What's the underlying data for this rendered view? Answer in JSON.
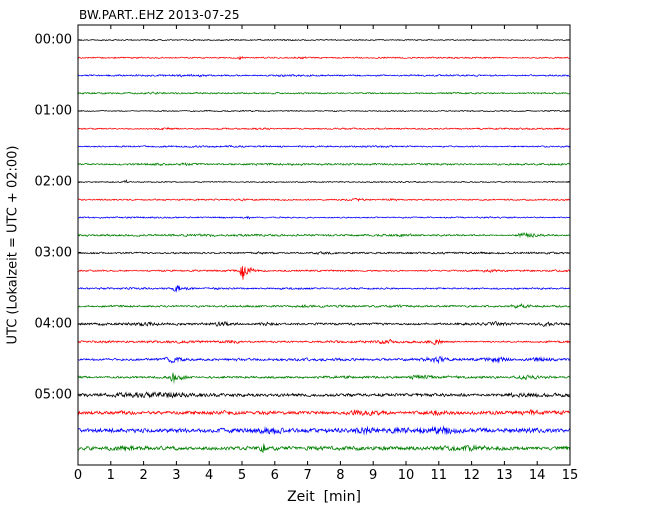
{
  "title": "BW.PART..EHZ 2013-07-25",
  "xlabel": "Zeit  [min]",
  "ylabel": "UTC (Lokalzeit = UTC + 02:00)",
  "chart_data": {
    "type": "line",
    "subtype": "seismogram-dayplot",
    "station": "BW.PART..EHZ",
    "date": "2013-07-25",
    "title": "BW.PART..EHZ 2013-07-25",
    "xlabel": "Zeit  [min]",
    "ylabel": "UTC (Lokalzeit = UTC + 02:00)",
    "xlim": [
      0,
      15
    ],
    "minutes_per_line": 15,
    "grid": false,
    "x_ticks": [
      "0",
      "1",
      "2",
      "3",
      "4",
      "5",
      "6",
      "7",
      "8",
      "9",
      "10",
      "11",
      "12",
      "13",
      "14",
      "15"
    ],
    "y_ticks": [
      "00:00",
      "01:00",
      "02:00",
      "03:00",
      "04:00",
      "05:00"
    ],
    "color_cycle": [
      "#000000",
      "#ff0000",
      "#0000ff",
      "#008000"
    ],
    "traces": [
      {
        "start": "00:00",
        "color": "#000000",
        "amp": 0.7,
        "events": []
      },
      {
        "start": "00:15",
        "color": "#ff0000",
        "amp": 0.9,
        "events": [
          {
            "pos": 4.95,
            "amp": 2.8,
            "w": 0.06
          },
          {
            "pos": 6.8,
            "amp": 0.7,
            "w": 0.2
          }
        ]
      },
      {
        "start": "00:30",
        "color": "#0000ff",
        "amp": 1.0,
        "events": [
          {
            "pos": 3.4,
            "amp": 0.7,
            "w": 0.4
          },
          {
            "pos": 6.5,
            "amp": 0.7,
            "w": 0.4
          }
        ]
      },
      {
        "start": "00:45",
        "color": "#008000",
        "amp": 1.0,
        "events": [
          {
            "pos": 2.3,
            "amp": 0.6,
            "w": 0.3
          },
          {
            "pos": 11.5,
            "amp": 0.5,
            "w": 0.5
          }
        ]
      },
      {
        "start": "01:00",
        "color": "#000000",
        "amp": 0.7,
        "events": []
      },
      {
        "start": "01:15",
        "color": "#ff0000",
        "amp": 0.9,
        "events": [
          {
            "pos": 2.6,
            "amp": 0.8,
            "w": 0.3
          },
          {
            "pos": 5.6,
            "amp": 0.8,
            "w": 0.3
          }
        ]
      },
      {
        "start": "01:30",
        "color": "#0000ff",
        "amp": 0.9,
        "events": [
          {
            "pos": 9.0,
            "amp": 0.5,
            "w": 0.4
          }
        ]
      },
      {
        "start": "01:45",
        "color": "#008000",
        "amp": 1.1,
        "events": [
          {
            "pos": 2.4,
            "amp": 1.0,
            "w": 0.25
          },
          {
            "pos": 3.3,
            "amp": 0.8,
            "w": 0.25
          }
        ]
      },
      {
        "start": "02:00",
        "color": "#000000",
        "amp": 0.7,
        "events": [
          {
            "pos": 1.45,
            "amp": 2.0,
            "w": 0.06
          }
        ]
      },
      {
        "start": "02:15",
        "color": "#ff0000",
        "amp": 1.0,
        "events": [
          {
            "pos": 5.0,
            "amp": 0.8,
            "w": 0.2
          },
          {
            "pos": 8.4,
            "amp": 1.2,
            "w": 0.3
          },
          {
            "pos": 9.5,
            "amp": 0.9,
            "w": 0.3
          }
        ]
      },
      {
        "start": "02:30",
        "color": "#0000ff",
        "amp": 0.9,
        "events": [
          {
            "pos": 5.2,
            "amp": 1.6,
            "w": 0.05
          }
        ]
      },
      {
        "start": "02:45",
        "color": "#008000",
        "amp": 1.2,
        "events": [
          {
            "pos": 10.0,
            "amp": 0.8,
            "w": 0.3
          },
          {
            "pos": 13.55,
            "amp": 3.0,
            "w": 0.18
          },
          {
            "pos": 13.95,
            "amp": 1.4,
            "w": 0.3
          }
        ]
      },
      {
        "start": "03:00",
        "color": "#000000",
        "amp": 1.0,
        "events": [
          {
            "pos": 5.6,
            "amp": 0.9,
            "w": 0.25
          },
          {
            "pos": 7.5,
            "amp": 0.9,
            "w": 0.3
          }
        ]
      },
      {
        "start": "03:15",
        "color": "#ff0000",
        "amp": 1.0,
        "events": [
          {
            "pos": 5.02,
            "amp": 20.0,
            "w": 0.05
          },
          {
            "pos": 5.2,
            "amp": 4.0,
            "w": 0.15
          },
          {
            "pos": 12.6,
            "amp": 1.0,
            "w": 0.3
          }
        ]
      },
      {
        "start": "03:30",
        "color": "#0000ff",
        "amp": 1.1,
        "events": [
          {
            "pos": 3.0,
            "amp": 3.0,
            "w": 0.12
          },
          {
            "pos": 3.35,
            "amp": 1.2,
            "w": 0.2
          },
          {
            "pos": 4.3,
            "amp": 0.9,
            "w": 0.2
          }
        ]
      },
      {
        "start": "03:45",
        "color": "#008000",
        "amp": 1.2,
        "events": [
          {
            "pos": 7.0,
            "amp": 0.8,
            "w": 0.3
          },
          {
            "pos": 9.6,
            "amp": 1.0,
            "w": 0.3
          },
          {
            "pos": 13.5,
            "amp": 1.8,
            "w": 0.25
          }
        ]
      },
      {
        "start": "04:00",
        "color": "#000000",
        "amp": 1.4,
        "events": [
          {
            "pos": 2.0,
            "amp": 1.2,
            "w": 0.3
          },
          {
            "pos": 4.4,
            "amp": 1.8,
            "w": 0.35
          },
          {
            "pos": 5.8,
            "amp": 1.2,
            "w": 0.3
          },
          {
            "pos": 12.8,
            "amp": 1.5,
            "w": 0.25
          },
          {
            "pos": 14.3,
            "amp": 2.2,
            "w": 0.15
          }
        ]
      },
      {
        "start": "04:15",
        "color": "#ff0000",
        "amp": 1.4,
        "events": [
          {
            "pos": 4.6,
            "amp": 1.3,
            "w": 0.3
          },
          {
            "pos": 9.4,
            "amp": 1.3,
            "w": 0.3
          },
          {
            "pos": 10.9,
            "amp": 2.0,
            "w": 0.25
          }
        ]
      },
      {
        "start": "04:30",
        "color": "#0000ff",
        "amp": 1.5,
        "events": [
          {
            "pos": 2.9,
            "amp": 2.2,
            "w": 0.2
          },
          {
            "pos": 10.9,
            "amp": 2.8,
            "w": 0.3
          },
          {
            "pos": 12.8,
            "amp": 2.3,
            "w": 0.3
          },
          {
            "pos": 14.1,
            "amp": 1.8,
            "w": 0.25
          }
        ]
      },
      {
        "start": "04:45",
        "color": "#008000",
        "amp": 1.5,
        "events": [
          {
            "pos": 2.9,
            "amp": 6.0,
            "w": 0.07
          },
          {
            "pos": 3.1,
            "amp": 2.0,
            "w": 0.2
          },
          {
            "pos": 10.4,
            "amp": 1.3,
            "w": 0.3
          },
          {
            "pos": 13.7,
            "amp": 1.3,
            "w": 0.3
          }
        ]
      },
      {
        "start": "05:00",
        "color": "#000000",
        "amp": 2.0,
        "events": [
          {
            "pos": 1.8,
            "amp": 1.5,
            "w": 0.8
          },
          {
            "pos": 2.8,
            "amp": 1.5,
            "w": 0.5
          },
          {
            "pos": 13.6,
            "amp": 1.0,
            "w": 0.4
          }
        ]
      },
      {
        "start": "05:15",
        "color": "#ff0000",
        "amp": 2.2,
        "events": [
          {
            "pos": 8.8,
            "amp": 2.0,
            "w": 0.5
          },
          {
            "pos": 11.0,
            "amp": 1.2,
            "w": 0.4
          },
          {
            "pos": 13.8,
            "amp": 1.2,
            "w": 0.3
          }
        ]
      },
      {
        "start": "05:30",
        "color": "#0000ff",
        "amp": 2.6,
        "events": [
          {
            "pos": 5.8,
            "amp": 1.5,
            "w": 0.4
          },
          {
            "pos": 8.7,
            "amp": 2.5,
            "w": 0.2
          },
          {
            "pos": 11.0,
            "amp": 2.2,
            "w": 0.5
          }
        ]
      },
      {
        "start": "05:45",
        "color": "#008000",
        "amp": 2.4,
        "events": [
          {
            "pos": 1.5,
            "amp": 1.0,
            "w": 0.5
          },
          {
            "pos": 5.65,
            "amp": 4.0,
            "w": 0.07
          },
          {
            "pos": 12.0,
            "amp": 1.0,
            "w": 0.6
          }
        ]
      }
    ]
  }
}
